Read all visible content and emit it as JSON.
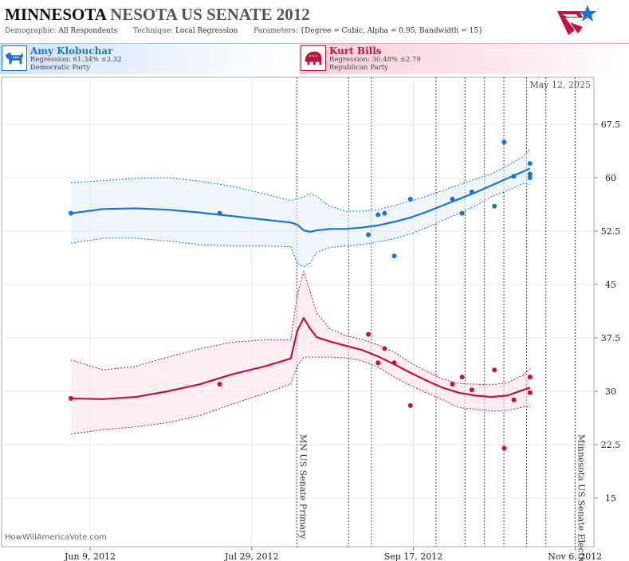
{
  "header": {
    "title_bold": "MINNESOTA",
    "title_rest": "NESOTA US SENATE 2012",
    "demographic_label": "Demographic:",
    "demographic_value": "All Respondents",
    "technique_label": "Technique:",
    "technique_value": "Local Regression",
    "parameters_label": "Parameters:",
    "parameters_value": "{Degree = Cubic, Alpha = 0.95, Bandwidth = 15}"
  },
  "candidates": {
    "dem": {
      "name": "Amy Klobuchar",
      "regression": "Regression: 61.34% ±2.32",
      "party": "Democratic Party",
      "color": "#1a73d6"
    },
    "rep": {
      "name": "Kurt Bills",
      "regression": "Regression: 30.48% ±2.79",
      "party": "Republican Party",
      "color": "#c8103e"
    }
  },
  "credit": "HowWillAmericaVote.com",
  "current_date": "May 12, 2025",
  "chart_data": {
    "type": "line",
    "x_range_days": [
      0,
      159
    ],
    "ylim": [
      10,
      72
    ],
    "y_ticks": [
      15,
      22.5,
      30,
      37.5,
      45,
      52.5,
      60,
      67.5
    ],
    "y_tick_labels": [
      "15",
      "22.5",
      "30",
      "37.5",
      "45",
      "52.5",
      "60",
      "67.5"
    ],
    "x_ticks": [
      {
        "day": 6,
        "label": "Jun 9, 2012"
      },
      {
        "day": 56,
        "label": "Jul 29, 2012"
      },
      {
        "day": 106,
        "label": "Sep 17, 2012"
      },
      {
        "day": 156,
        "label": "Nov 6, 2012"
      }
    ],
    "events": [
      {
        "day": 70,
        "label": "MN US Senate Primary"
      },
      {
        "day": 156,
        "label": "Minnesota US Senate Election"
      }
    ],
    "poll_lines": [
      {
        "day": 86,
        "color": "#9b1b4b"
      },
      {
        "day": 93,
        "color": "#2a7fa0"
      },
      {
        "day": 113,
        "color": "#444"
      },
      {
        "day": 122,
        "color": "#444"
      },
      {
        "day": 128,
        "color": "#444"
      },
      {
        "day": 134,
        "color": "#444"
      },
      {
        "day": 141,
        "color": "#444"
      },
      {
        "day": 147,
        "color": "#444"
      }
    ],
    "series": [
      {
        "name": "Amy Klobuchar",
        "color": "#1a73d6",
        "fill": "#e3eef9",
        "points": [
          {
            "x": 0,
            "y": 55
          },
          {
            "x": 46,
            "y": 55
          },
          {
            "x": 92,
            "y": 52
          },
          {
            "x": 95,
            "y": 54.8
          },
          {
            "x": 97,
            "y": 55
          },
          {
            "x": 100,
            "y": 49
          },
          {
            "x": 105,
            "y": 57
          },
          {
            "x": 118,
            "y": 57
          },
          {
            "x": 121,
            "y": 55
          },
          {
            "x": 124,
            "y": 58
          },
          {
            "x": 131,
            "y": 56
          },
          {
            "x": 134,
            "y": 65
          },
          {
            "x": 137,
            "y": 60.2
          },
          {
            "x": 142,
            "y": 62
          },
          {
            "x": 142,
            "y": 60.5
          },
          {
            "x": 142,
            "y": 60
          }
        ],
        "trend": [
          [
            0,
            55
          ],
          [
            10,
            55.6
          ],
          [
            20,
            55.7
          ],
          [
            30,
            55.5
          ],
          [
            40,
            55.1
          ],
          [
            50,
            54.6
          ],
          [
            60,
            54.1
          ],
          [
            68,
            53.7
          ],
          [
            70,
            53.4
          ],
          [
            72,
            52.6
          ],
          [
            74,
            52.4
          ],
          [
            76,
            52.6
          ],
          [
            80,
            52.8
          ],
          [
            85,
            52.8
          ],
          [
            90,
            53.0
          ],
          [
            95,
            53.3
          ],
          [
            100,
            53.8
          ],
          [
            105,
            54.4
          ],
          [
            110,
            55.2
          ],
          [
            115,
            56.1
          ],
          [
            120,
            57.0
          ],
          [
            125,
            57.9
          ],
          [
            130,
            58.9
          ],
          [
            135,
            59.9
          ],
          [
            140,
            60.9
          ],
          [
            142,
            61.3
          ]
        ],
        "upper": [
          [
            0,
            59.3
          ],
          [
            10,
            59.6
          ],
          [
            20,
            59.9
          ],
          [
            30,
            60.0
          ],
          [
            40,
            59.5
          ],
          [
            50,
            58.8
          ],
          [
            60,
            57.7
          ],
          [
            68,
            56.8
          ],
          [
            72,
            57.3
          ],
          [
            74,
            57.8
          ],
          [
            76,
            57.4
          ],
          [
            80,
            56.0
          ],
          [
            85,
            55.3
          ],
          [
            90,
            55.3
          ],
          [
            95,
            55.5
          ],
          [
            100,
            56.1
          ],
          [
            105,
            56.7
          ],
          [
            110,
            57.4
          ],
          [
            115,
            58.2
          ],
          [
            120,
            59.0
          ],
          [
            125,
            59.8
          ],
          [
            130,
            60.5
          ],
          [
            135,
            61.7
          ],
          [
            140,
            63.0
          ],
          [
            142,
            64.0
          ]
        ],
        "lower": [
          [
            0,
            50.8
          ],
          [
            10,
            51.5
          ],
          [
            20,
            51.5
          ],
          [
            30,
            51.1
          ],
          [
            40,
            50.6
          ],
          [
            50,
            50.4
          ],
          [
            60,
            50.4
          ],
          [
            68,
            50.3
          ],
          [
            70,
            48.0
          ],
          [
            72,
            47.5
          ],
          [
            74,
            48.0
          ],
          [
            76,
            49.5
          ],
          [
            80,
            50.2
          ],
          [
            85,
            50.4
          ],
          [
            90,
            50.6
          ],
          [
            95,
            51.0
          ],
          [
            100,
            51.4
          ],
          [
            105,
            52.1
          ],
          [
            110,
            53.0
          ],
          [
            115,
            54.0
          ],
          [
            120,
            55.0
          ],
          [
            125,
            56.0
          ],
          [
            130,
            57.3
          ],
          [
            135,
            58.2
          ],
          [
            140,
            59.2
          ],
          [
            142,
            59.0
          ]
        ]
      },
      {
        "name": "Kurt Bills",
        "color": "#c8103e",
        "fill": "#fbe3ea",
        "points": [
          {
            "x": 0,
            "y": 29
          },
          {
            "x": 46,
            "y": 31
          },
          {
            "x": 92,
            "y": 38
          },
          {
            "x": 95,
            "y": 34
          },
          {
            "x": 97,
            "y": 36
          },
          {
            "x": 100,
            "y": 34
          },
          {
            "x": 105,
            "y": 28
          },
          {
            "x": 118,
            "y": 31
          },
          {
            "x": 121,
            "y": 32
          },
          {
            "x": 124,
            "y": 30.2
          },
          {
            "x": 131,
            "y": 33
          },
          {
            "x": 134,
            "y": 22
          },
          {
            "x": 137,
            "y": 28.8
          },
          {
            "x": 142,
            "y": 32
          },
          {
            "x": 142,
            "y": 29.8
          }
        ],
        "trend": [
          [
            0,
            29
          ],
          [
            10,
            28.9
          ],
          [
            20,
            29.2
          ],
          [
            30,
            30.0
          ],
          [
            40,
            31.0
          ],
          [
            50,
            32.4
          ],
          [
            60,
            33.5
          ],
          [
            68,
            34.6
          ],
          [
            70,
            38.5
          ],
          [
            72,
            40.3
          ],
          [
            74,
            38.8
          ],
          [
            76,
            37.6
          ],
          [
            80,
            37.0
          ],
          [
            85,
            36.4
          ],
          [
            90,
            35.8
          ],
          [
            95,
            34.9
          ],
          [
            100,
            33.8
          ],
          [
            105,
            32.6
          ],
          [
            110,
            31.5
          ],
          [
            115,
            30.5
          ],
          [
            120,
            29.8
          ],
          [
            125,
            29.4
          ],
          [
            130,
            29.2
          ],
          [
            135,
            29.4
          ],
          [
            140,
            30.2
          ],
          [
            142,
            30.5
          ]
        ],
        "upper": [
          [
            0,
            34.4
          ],
          [
            10,
            33.0
          ],
          [
            20,
            33.5
          ],
          [
            30,
            34.8
          ],
          [
            40,
            36.0
          ],
          [
            50,
            36.9
          ],
          [
            60,
            37.2
          ],
          [
            68,
            37.2
          ],
          [
            70,
            43.5
          ],
          [
            72,
            46.8
          ],
          [
            74,
            44.0
          ],
          [
            76,
            41.0
          ],
          [
            80,
            38.8
          ],
          [
            85,
            37.8
          ],
          [
            90,
            37.3
          ],
          [
            95,
            36.5
          ],
          [
            100,
            35.5
          ],
          [
            105,
            34.0
          ],
          [
            110,
            32.8
          ],
          [
            115,
            31.7
          ],
          [
            120,
            31.1
          ],
          [
            125,
            31.0
          ],
          [
            130,
            30.9
          ],
          [
            135,
            31.2
          ],
          [
            140,
            32.3
          ],
          [
            142,
            33.2
          ]
        ],
        "lower": [
          [
            0,
            24.0
          ],
          [
            10,
            24.6
          ],
          [
            20,
            25.0
          ],
          [
            30,
            25.6
          ],
          [
            40,
            26.6
          ],
          [
            50,
            28.2
          ],
          [
            60,
            29.7
          ],
          [
            68,
            31.0
          ],
          [
            70,
            33.5
          ],
          [
            72,
            34.8
          ],
          [
            74,
            34.8
          ],
          [
            76,
            34.8
          ],
          [
            80,
            34.8
          ],
          [
            85,
            34.7
          ],
          [
            90,
            34.3
          ],
          [
            95,
            33.4
          ],
          [
            100,
            32.0
          ],
          [
            105,
            30.8
          ],
          [
            110,
            29.8
          ],
          [
            115,
            28.8
          ],
          [
            120,
            27.7
          ],
          [
            125,
            27.5
          ],
          [
            130,
            27.2
          ],
          [
            135,
            27.3
          ],
          [
            140,
            27.8
          ],
          [
            142,
            27.8
          ]
        ]
      }
    ]
  }
}
